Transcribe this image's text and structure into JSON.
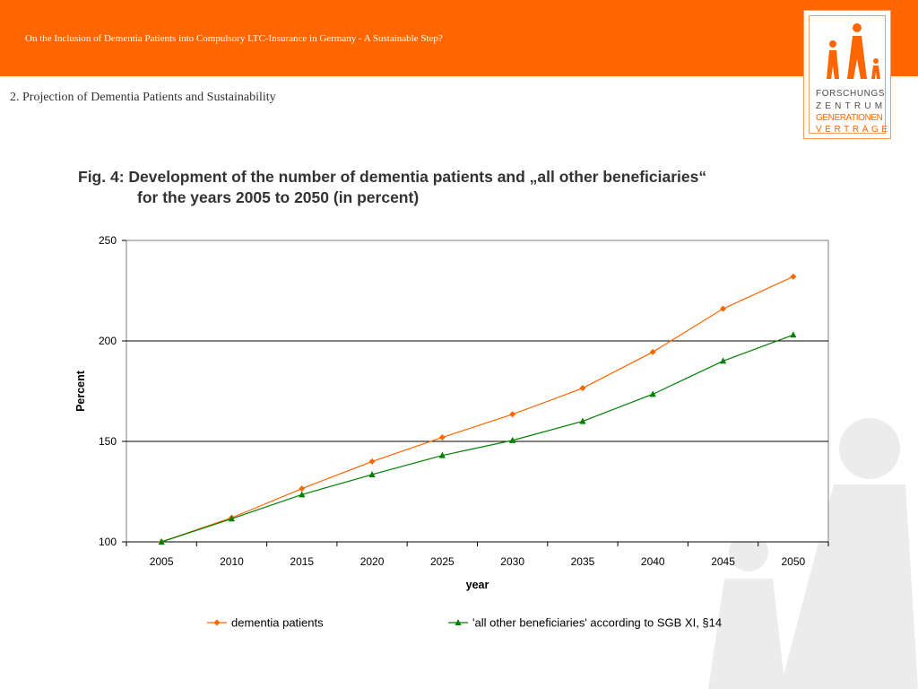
{
  "header": {
    "title": "On the Inclusion of Dementia Patients into Compulsory LTC-Insurance in Germany - A Sustainable Step?",
    "section": "2.  Projection of Dementia Patients and Sustainability"
  },
  "logo": {
    "lines": [
      "FORSCHUNGS",
      "ZENTRUM",
      "GENERATIONEN",
      "VERTRÄGE"
    ]
  },
  "colors": {
    "brand": "#ff6600",
    "series1": "#ff6600",
    "series2": "#008000"
  },
  "figure": {
    "title_line1": "Fig. 4:  Development of the number of dementia patients and „all other beneficiaries“",
    "title_line2": "for the years 2005 to 2050 (in percent)"
  },
  "chart_data": {
    "type": "line",
    "xlabel": "year",
    "ylabel": "Percent",
    "categories": [
      "2005",
      "2010",
      "2015",
      "2020",
      "2025",
      "2030",
      "2035",
      "2040",
      "2045",
      "2050"
    ],
    "ylim": [
      100,
      250
    ],
    "yticks": [
      100,
      150,
      200,
      250
    ],
    "grid": "horizontal",
    "legend_position": "bottom",
    "series": [
      {
        "name": "dementia patients",
        "marker": "diamond",
        "color": "#ff6600",
        "values": [
          100,
          112,
          126.5,
          140,
          152,
          163.5,
          176.5,
          194.5,
          216,
          232
        ]
      },
      {
        "name": "'all other beneficiaries' according to SGB XI, §14",
        "marker": "triangle",
        "color": "#008000",
        "values": [
          100,
          111.5,
          123.5,
          133.5,
          143,
          150.5,
          160,
          173.5,
          190,
          203
        ]
      }
    ]
  }
}
